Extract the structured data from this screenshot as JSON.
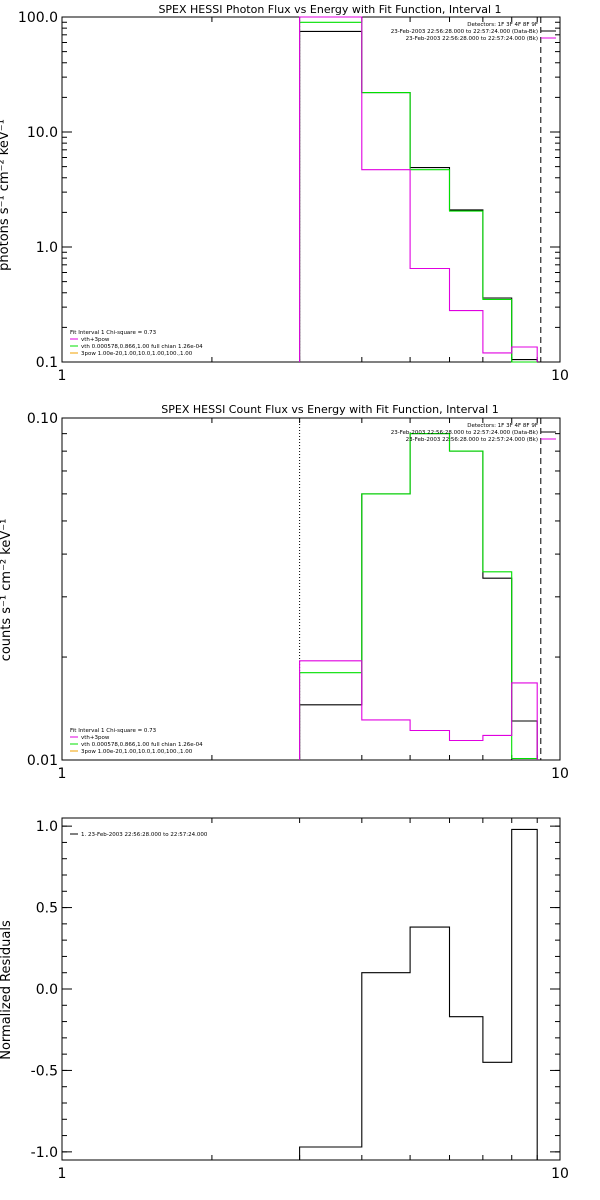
{
  "colors": {
    "axis": "#000000",
    "black": "#000000",
    "green": "#00e000",
    "magenta": "#e000e0",
    "orange": "#f0a000"
  },
  "chart_data": [
    {
      "type": "line",
      "title": "SPEX HESSI Photon Flux vs Energy with Fit Function, Interval 1",
      "ylabel": "photons s⁻¹ cm⁻² keV⁻¹",
      "xscale": "log",
      "yscale": "log",
      "xlim": [
        1,
        10
      ],
      "ylim": [
        0.1,
        100
      ],
      "x_ticks": [
        {
          "v": 1,
          "label": "1"
        },
        {
          "v": 10,
          "label": "10"
        }
      ],
      "y_ticks": [
        {
          "v": 0.1,
          "label": "0.1"
        },
        {
          "v": 1,
          "label": "1.0"
        },
        {
          "v": 10,
          "label": "10.0"
        },
        {
          "v": 100,
          "label": "100.0"
        }
      ],
      "bin_edges": [
        3.0,
        4.0,
        5.0,
        6.0,
        7.0,
        8.0,
        9.0
      ],
      "dotted_line_x": 3.0,
      "dashed_line_x": 9.15,
      "series": [
        {
          "color_key": "black",
          "values": [
            75,
            22,
            4.9,
            2.1,
            0.36,
            0.105
          ]
        },
        {
          "color_key": "green",
          "values": [
            90,
            22,
            4.7,
            2.05,
            0.35,
            0.1
          ]
        },
        {
          "color_key": "magenta",
          "values": [
            100,
            4.7,
            0.65,
            0.28,
            0.12,
            0.135
          ]
        }
      ],
      "legend_right": [
        {
          "text": "Detectors: 1F 3F 4F 8F 9F",
          "color_key": ""
        },
        {
          "text": "23-Feb-2003 22:56:28.000 to 22:57:24.000 (Data-Bk)",
          "color_key": "black"
        },
        {
          "text": "23-Feb-2003 22:56:28.000 to 22:57:24.000 (Bk)",
          "color_key": "magenta"
        }
      ],
      "legend_left": [
        {
          "text": "Fit Interval 1    Chi-square = 0.73",
          "color_key": ""
        },
        {
          "text": "vth+3pow",
          "color_key": "magenta"
        },
        {
          "text": "vth 0.000578,0.866,1.00  full chian 1.26e-04",
          "color_key": "green"
        },
        {
          "text": "3pow 1.00e-20,1.00,10.0,1.00,100.,1.00",
          "color_key": "orange"
        }
      ]
    },
    {
      "type": "line",
      "title": "SPEX HESSI Count Flux vs Energy with Fit Function, Interval 1",
      "ylabel": "counts s⁻¹ cm⁻² keV⁻¹",
      "xscale": "log",
      "yscale": "log",
      "xlim": [
        1,
        10
      ],
      "ylim": [
        0.01,
        0.1
      ],
      "x_ticks": [
        {
          "v": 1,
          "label": "1"
        },
        {
          "v": 10,
          "label": "10"
        }
      ],
      "y_ticks": [
        {
          "v": 0.01,
          "label": "0.01"
        },
        {
          "v": 0.1,
          "label": "0.10"
        }
      ],
      "bin_edges": [
        3.0,
        4.0,
        5.0,
        6.0,
        7.0,
        8.0,
        9.0
      ],
      "dotted_line_x": 3.0,
      "dashed_line_x": 9.15,
      "series": [
        {
          "color_key": "black",
          "values": [
            0.0145,
            0.06,
            0.09,
            0.08,
            0.034,
            0.013
          ]
        },
        {
          "color_key": "green",
          "values": [
            0.018,
            0.06,
            0.09,
            0.08,
            0.0355,
            0.0101
          ]
        },
        {
          "color_key": "magenta",
          "values": [
            0.0195,
            0.0131,
            0.0122,
            0.0114,
            0.0118,
            0.0168
          ]
        }
      ],
      "legend_right": [
        {
          "text": "Detectors: 1F 3F 4F 8F 9F",
          "color_key": ""
        },
        {
          "text": "23-Feb-2003 22:56:28.000 to 22:57:24.000 (Data-Bk)",
          "color_key": "black"
        },
        {
          "text": "23-Feb-2003 22:56:28.000 to 22:57:24.000 (Bk)",
          "color_key": "magenta"
        }
      ],
      "legend_left": [
        {
          "text": "Fit Interval 1    Chi-square = 0.73",
          "color_key": ""
        },
        {
          "text": "vth+3pow",
          "color_key": "magenta"
        },
        {
          "text": "vth 0.000578,0.866,1.00  full chian 1.26e-04",
          "color_key": "green"
        },
        {
          "text": "3pow 1.00e-20,1.00,10.0,1.00,100.,1.00",
          "color_key": "orange"
        }
      ]
    },
    {
      "type": "line",
      "title": "",
      "ylabel": "Normalized Residuals",
      "xscale": "log",
      "yscale": "linear",
      "xlim": [
        1,
        10
      ],
      "ylim": [
        -1.05,
        1.05
      ],
      "x_ticks": [
        {
          "v": 1,
          "label": "1"
        },
        {
          "v": 10,
          "label": "10"
        }
      ],
      "y_ticks": [
        {
          "v": -1,
          "label": "-1.0"
        },
        {
          "v": -0.5,
          "label": "-0.5"
        },
        {
          "v": 0,
          "label": "0.0"
        },
        {
          "v": 0.5,
          "label": "0.5"
        },
        {
          "v": 1,
          "label": "1.0"
        }
      ],
      "bin_edges": [
        3.0,
        4.0,
        5.0,
        6.0,
        7.0,
        8.0,
        9.0
      ],
      "series": [
        {
          "color_key": "black",
          "values": [
            -0.97,
            0.1,
            0.38,
            -0.17,
            -0.45,
            0.98
          ]
        }
      ],
      "legend_left_top": [
        {
          "text": "1. 23-Feb-2003 22:56:28.000 to 22:57:24.000",
          "color_key": "black"
        }
      ]
    }
  ]
}
